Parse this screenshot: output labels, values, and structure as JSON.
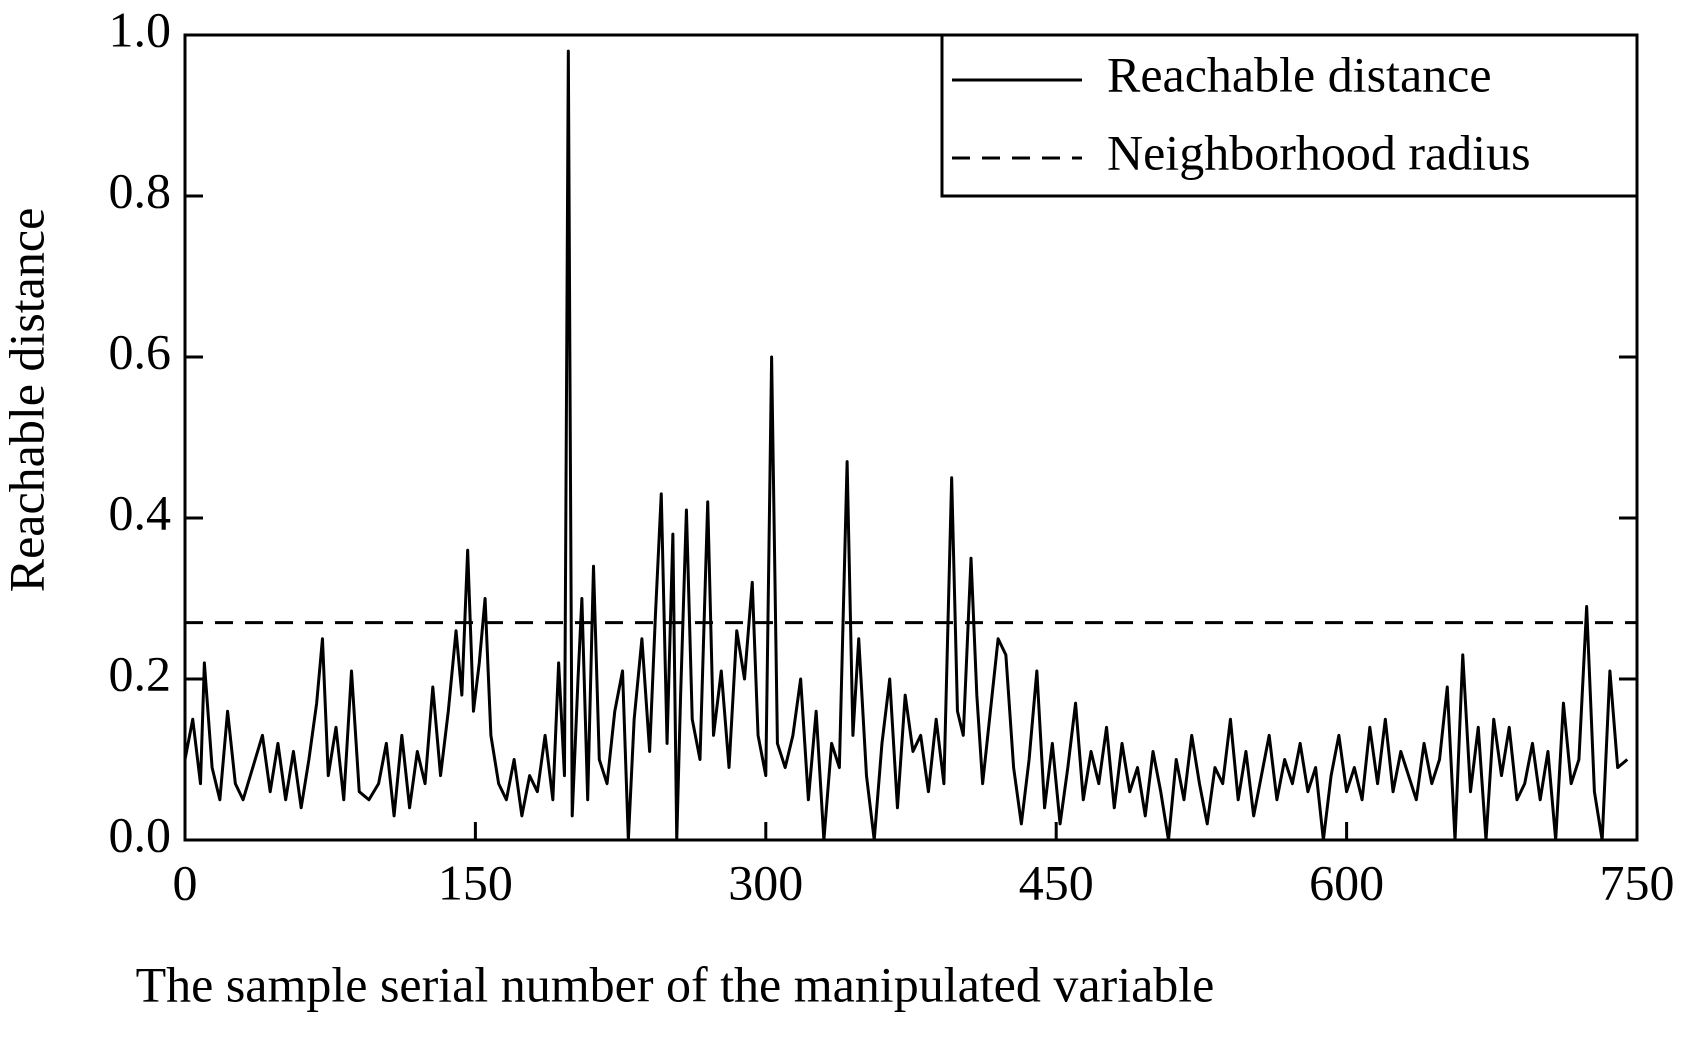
{
  "chart_data": {
    "type": "line",
    "xlabel": "The sample serial number of the manipulated variable",
    "ylabel": "Reachable distance",
    "xlim": [
      0,
      750
    ],
    "xticks": [
      0,
      150,
      300,
      450,
      600,
      750
    ],
    "ylim": [
      0,
      1
    ],
    "yticks": [
      {
        "value": 0,
        "label": "0.0"
      },
      0.2,
      0.4,
      0.6,
      0.8,
      {
        "value": 1,
        "label": "1.0"
      }
    ],
    "legend": "upper right",
    "series": [
      {
        "name": "Reachable distance",
        "color": "#000000",
        "dash": false,
        "x": [
          0,
          4,
          8,
          10,
          14,
          18,
          22,
          26,
          30,
          35,
          40,
          44,
          48,
          52,
          56,
          60,
          64,
          68,
          71,
          74,
          78,
          82,
          86,
          90,
          95,
          100,
          104,
          108,
          112,
          116,
          120,
          124,
          128,
          132,
          136,
          140,
          143,
          146,
          149,
          152,
          155,
          158,
          162,
          166,
          170,
          174,
          178,
          182,
          186,
          190,
          193,
          196,
          198,
          200,
          203,
          205,
          208,
          211,
          214,
          218,
          222,
          226,
          229,
          232,
          236,
          240,
          243,
          246,
          249,
          252,
          254,
          256,
          259,
          262,
          266,
          270,
          273,
          277,
          281,
          285,
          289,
          293,
          296,
          300,
          303,
          306,
          310,
          314,
          318,
          322,
          326,
          330,
          334,
          338,
          342,
          345,
          348,
          352,
          356,
          360,
          364,
          368,
          372,
          376,
          380,
          384,
          388,
          392,
          396,
          399,
          402,
          406,
          409,
          412,
          416,
          420,
          424,
          428,
          432,
          436,
          440,
          444,
          448,
          452,
          456,
          460,
          464,
          468,
          472,
          476,
          480,
          484,
          488,
          492,
          496,
          500,
          504,
          508,
          512,
          516,
          520,
          524,
          528,
          532,
          536,
          540,
          544,
          548,
          552,
          556,
          560,
          564,
          568,
          572,
          576,
          580,
          584,
          588,
          592,
          596,
          600,
          604,
          608,
          612,
          616,
          620,
          624,
          628,
          632,
          636,
          640,
          644,
          648,
          652,
          656,
          660,
          664,
          668,
          672,
          676,
          680,
          684,
          688,
          692,
          696,
          700,
          704,
          708,
          712,
          716,
          720,
          724,
          728,
          732,
          736,
          740,
          745
        ],
        "values": [
          0.1,
          0.15,
          0.07,
          0.22,
          0.09,
          0.05,
          0.16,
          0.07,
          0.05,
          0.09,
          0.13,
          0.06,
          0.12,
          0.05,
          0.11,
          0.04,
          0.1,
          0.17,
          0.25,
          0.08,
          0.14,
          0.05,
          0.21,
          0.06,
          0.05,
          0.07,
          0.12,
          0.03,
          0.13,
          0.04,
          0.11,
          0.07,
          0.19,
          0.08,
          0.16,
          0.26,
          0.18,
          0.36,
          0.16,
          0.22,
          0.3,
          0.13,
          0.07,
          0.05,
          0.1,
          0.03,
          0.08,
          0.06,
          0.13,
          0.05,
          0.22,
          0.08,
          0.98,
          0.03,
          0.2,
          0.3,
          0.05,
          0.34,
          0.1,
          0.07,
          0.16,
          0.21,
          0.0,
          0.15,
          0.25,
          0.11,
          0.28,
          0.43,
          0.12,
          0.38,
          0.0,
          0.18,
          0.41,
          0.15,
          0.1,
          0.42,
          0.13,
          0.21,
          0.09,
          0.26,
          0.2,
          0.32,
          0.13,
          0.08,
          0.6,
          0.12,
          0.09,
          0.13,
          0.2,
          0.05,
          0.16,
          0.0,
          0.12,
          0.09,
          0.47,
          0.13,
          0.25,
          0.08,
          0.0,
          0.12,
          0.2,
          0.04,
          0.18,
          0.11,
          0.13,
          0.06,
          0.15,
          0.07,
          0.45,
          0.16,
          0.13,
          0.35,
          0.18,
          0.07,
          0.16,
          0.25,
          0.23,
          0.09,
          0.02,
          0.1,
          0.21,
          0.04,
          0.12,
          0.02,
          0.09,
          0.17,
          0.05,
          0.11,
          0.07,
          0.14,
          0.04,
          0.12,
          0.06,
          0.09,
          0.03,
          0.11,
          0.06,
          0.0,
          0.1,
          0.05,
          0.13,
          0.07,
          0.02,
          0.09,
          0.07,
          0.15,
          0.05,
          0.11,
          0.03,
          0.08,
          0.13,
          0.05,
          0.1,
          0.07,
          0.12,
          0.06,
          0.09,
          0.0,
          0.08,
          0.13,
          0.06,
          0.09,
          0.05,
          0.14,
          0.07,
          0.15,
          0.06,
          0.11,
          0.08,
          0.05,
          0.12,
          0.07,
          0.1,
          0.19,
          0.0,
          0.23,
          0.06,
          0.14,
          0.0,
          0.15,
          0.08,
          0.14,
          0.05,
          0.07,
          0.12,
          0.05,
          0.11,
          0.0,
          0.17,
          0.07,
          0.1,
          0.29,
          0.06,
          0.0,
          0.21,
          0.09,
          0.1
        ]
      },
      {
        "name": "Neighborhood radius",
        "color": "#000000",
        "dash": true,
        "x": [
          0,
          750
        ],
        "values": [
          0.27,
          0.27
        ]
      }
    ]
  }
}
